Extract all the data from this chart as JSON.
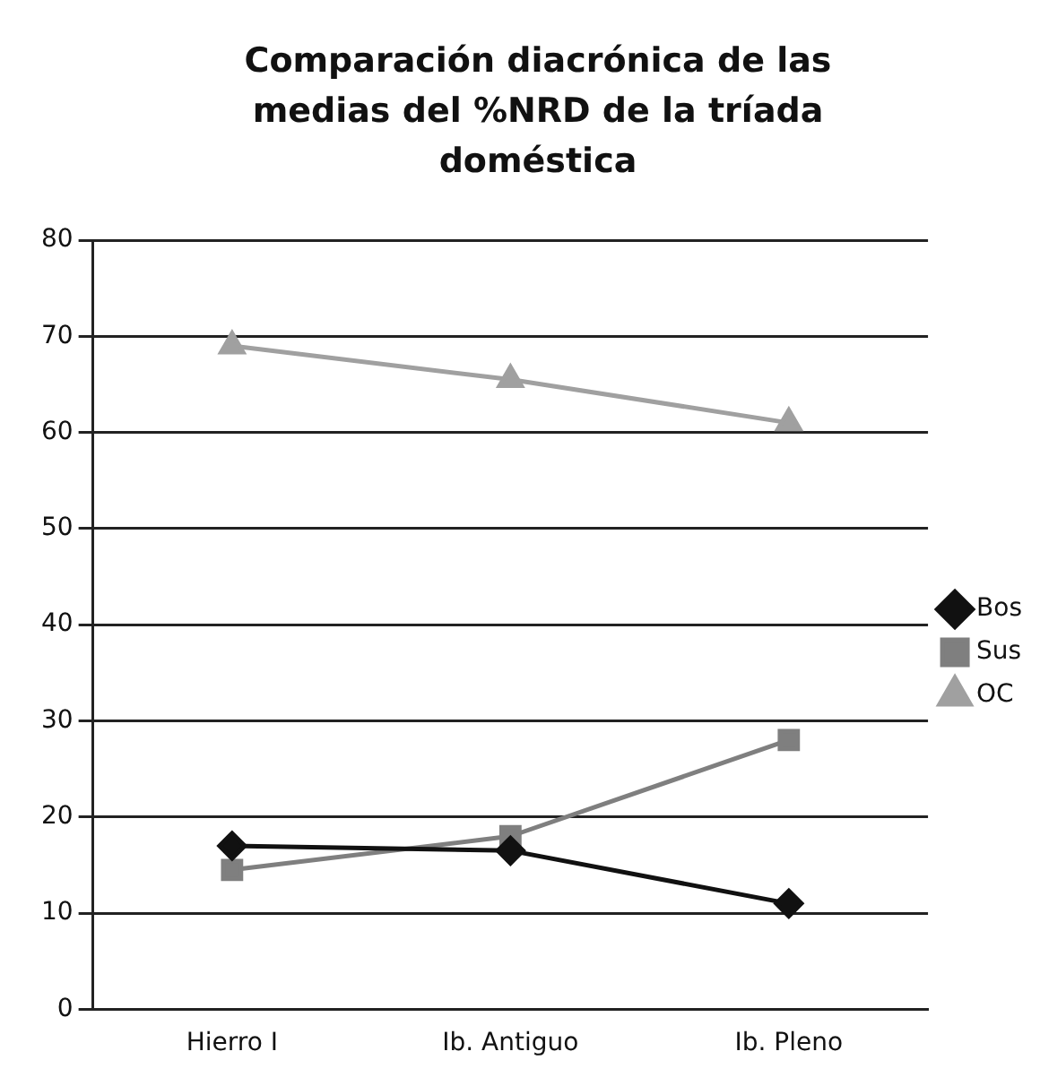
{
  "chart_data": {
    "type": "line",
    "title": "Comparación diacrónica de las medias del %NRD de la tríada doméstica",
    "categories": [
      "Hierro I",
      "Ib. Antiguo",
      "Ib. Pleno"
    ],
    "series": [
      {
        "name": "Bos",
        "color": "#111111",
        "marker": "diamond",
        "values": [
          17,
          16.5,
          11
        ]
      },
      {
        "name": "Sus",
        "color": "#7f7f7f",
        "marker": "square",
        "values": [
          14.5,
          18,
          28
        ]
      },
      {
        "name": "OC",
        "color": "#a0a0a0",
        "marker": "triangle",
        "values": [
          69,
          65.5,
          61
        ]
      }
    ],
    "ylim": [
      0,
      80
    ],
    "yticks": [
      0,
      10,
      20,
      30,
      40,
      50,
      60,
      70,
      80
    ],
    "grid": "y",
    "legend": "right",
    "line_style": "solid"
  }
}
